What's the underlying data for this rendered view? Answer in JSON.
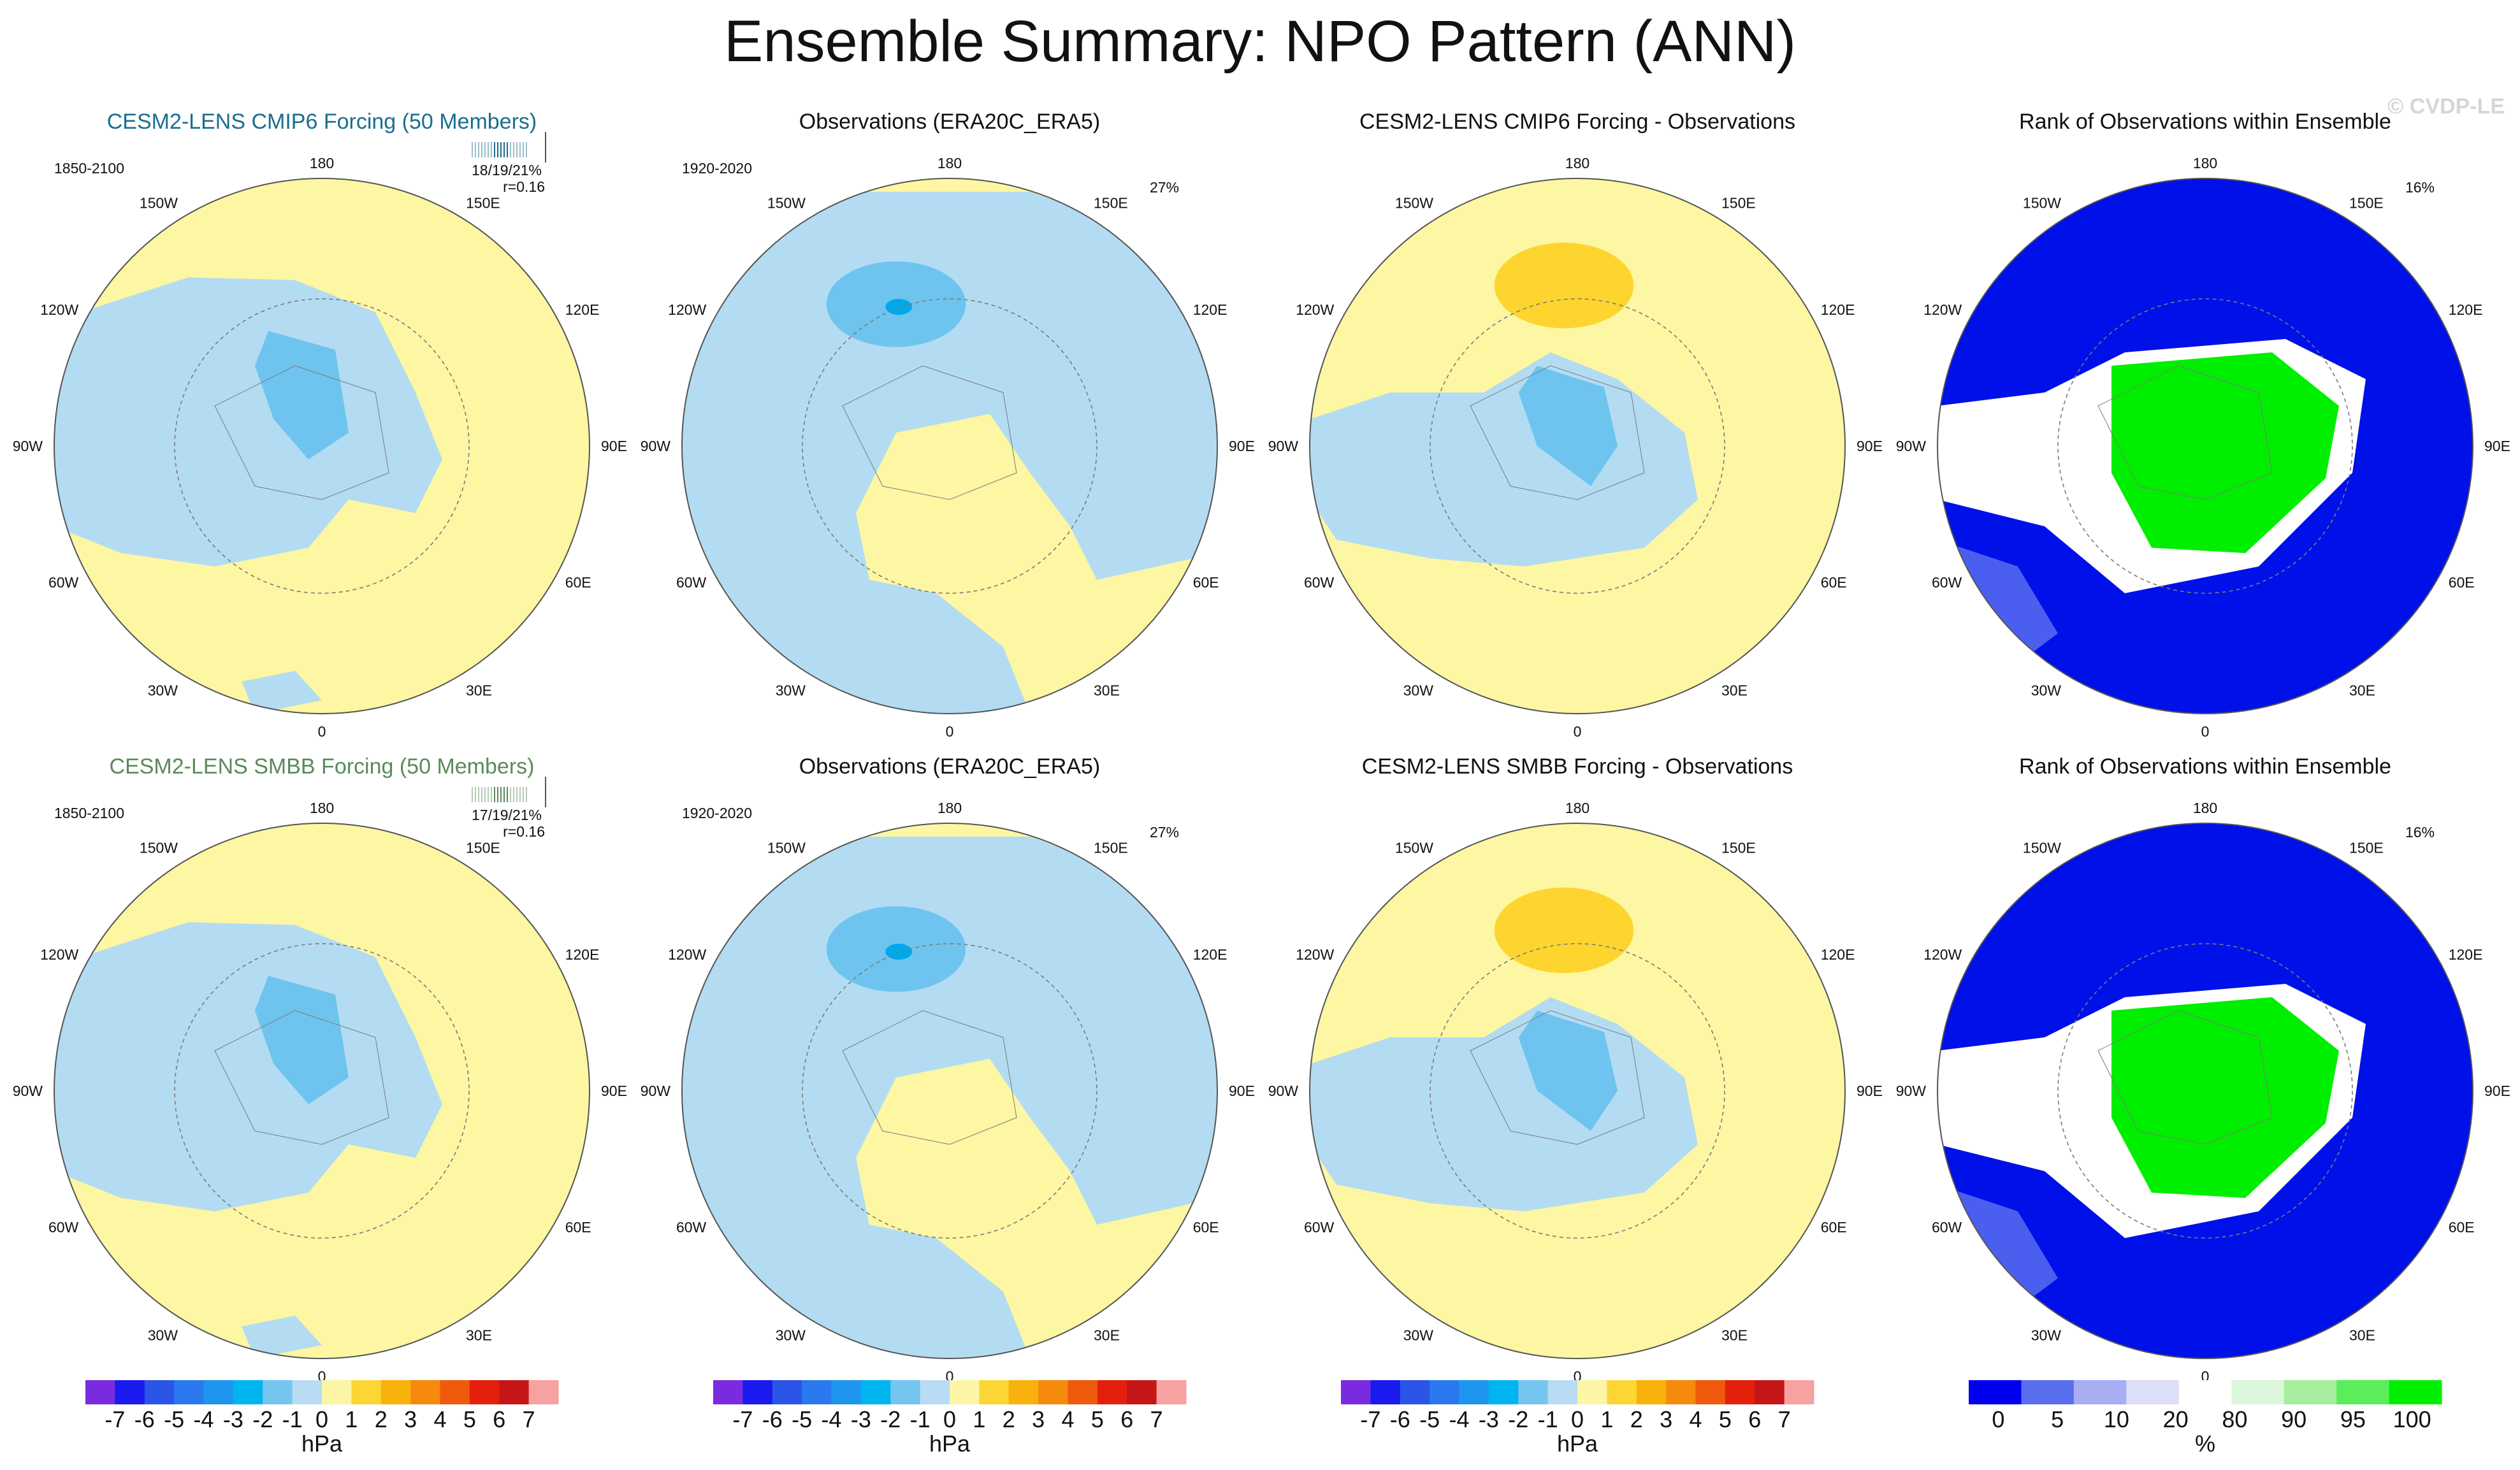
{
  "figure": {
    "title": "Ensemble Summary: NPO Pattern (ANN)",
    "watermark": "© CVDP-LE"
  },
  "colors": {
    "light_blue": "#b3dcf2",
    "mid_blue": "#6ec4ee",
    "deep_blue": "#4aa9e8",
    "core_blue": "#00a8ec",
    "light_yellow": "#fdf6a3",
    "gold": "#fdd52e",
    "rank_blue": "#0010e8",
    "rank_blue2": "#4a5ef0",
    "rank_green": "#00ee00",
    "rank_white": "#ffffff",
    "land": "#7a7a7a",
    "title_cmip6": "#1a6e8e",
    "title_smbb": "#5a8a5a"
  },
  "rows": [
    {
      "panels": [
        {
          "kind": "model",
          "title": "CESM2-LENS CMIP6 Forcing (50 Members)",
          "period": "1850-2100",
          "stat_pct": "18/19/21%",
          "stat_r": "r=0.16"
        },
        {
          "kind": "obs",
          "title": "Observations (ERA20C_ERA5)",
          "period": "1920-2020",
          "pct": "27%"
        },
        {
          "kind": "diff",
          "title": "CESM2-LENS CMIP6 Forcing - Observations"
        },
        {
          "kind": "rank",
          "title": "Rank of Observations within Ensemble",
          "pct": "16%"
        }
      ]
    },
    {
      "panels": [
        {
          "kind": "model",
          "title": "CESM2-LENS SMBB Forcing (50 Members)",
          "period": "1850-2100",
          "stat_pct": "17/19/21%",
          "stat_r": "r=0.16"
        },
        {
          "kind": "obs",
          "title": "Observations (ERA20C_ERA5)",
          "period": "1920-2020",
          "pct": "27%"
        },
        {
          "kind": "diff",
          "title": "CESM2-LENS SMBB Forcing - Observations"
        },
        {
          "kind": "rank",
          "title": "Rank of Observations within Ensemble",
          "pct": "16%"
        }
      ]
    }
  ],
  "map_labels": {
    "lon_top": "180",
    "lon_bottom": "0",
    "lon_150W": "150W",
    "lon_150E": "150E",
    "lon_120W": "120W",
    "lon_120E": "120E",
    "lon_90W": "90W",
    "lon_90E": "90E",
    "lon_60W": "60W",
    "lon_60E": "60E",
    "lon_30W": "30W",
    "lon_30E": "30E"
  },
  "chart_data": [
    {
      "type": "colorbar",
      "units": "hPa",
      "tick_labels": [
        "-7",
        "-6",
        "-5",
        "-4",
        "-3",
        "-2",
        "-1",
        "0",
        "1",
        "2",
        "3",
        "4",
        "5",
        "6",
        "7"
      ],
      "colors": [
        "#7a2be0",
        "#1a1aee",
        "#2a55e8",
        "#2a78ee",
        "#1e96f0",
        "#00b4f0",
        "#74c6ef",
        "#b7dcf4",
        "#fcf5a5",
        "#fdd535",
        "#f9b20c",
        "#f58a0c",
        "#f05a0c",
        "#e4200c",
        "#c41616",
        "#f7a1a1"
      ]
    },
    {
      "type": "colorbar",
      "units": "%",
      "tick_labels": [
        "0",
        "5",
        "10",
        "20",
        "80",
        "90",
        "95",
        "100"
      ],
      "colors": [
        "#0000ee",
        "#5a6ef0",
        "#a7aef4",
        "#dcdff8",
        "#ffffff",
        "#dcf7dc",
        "#a6ee9e",
        "#5aee5a",
        "#00ee00"
      ]
    }
  ]
}
